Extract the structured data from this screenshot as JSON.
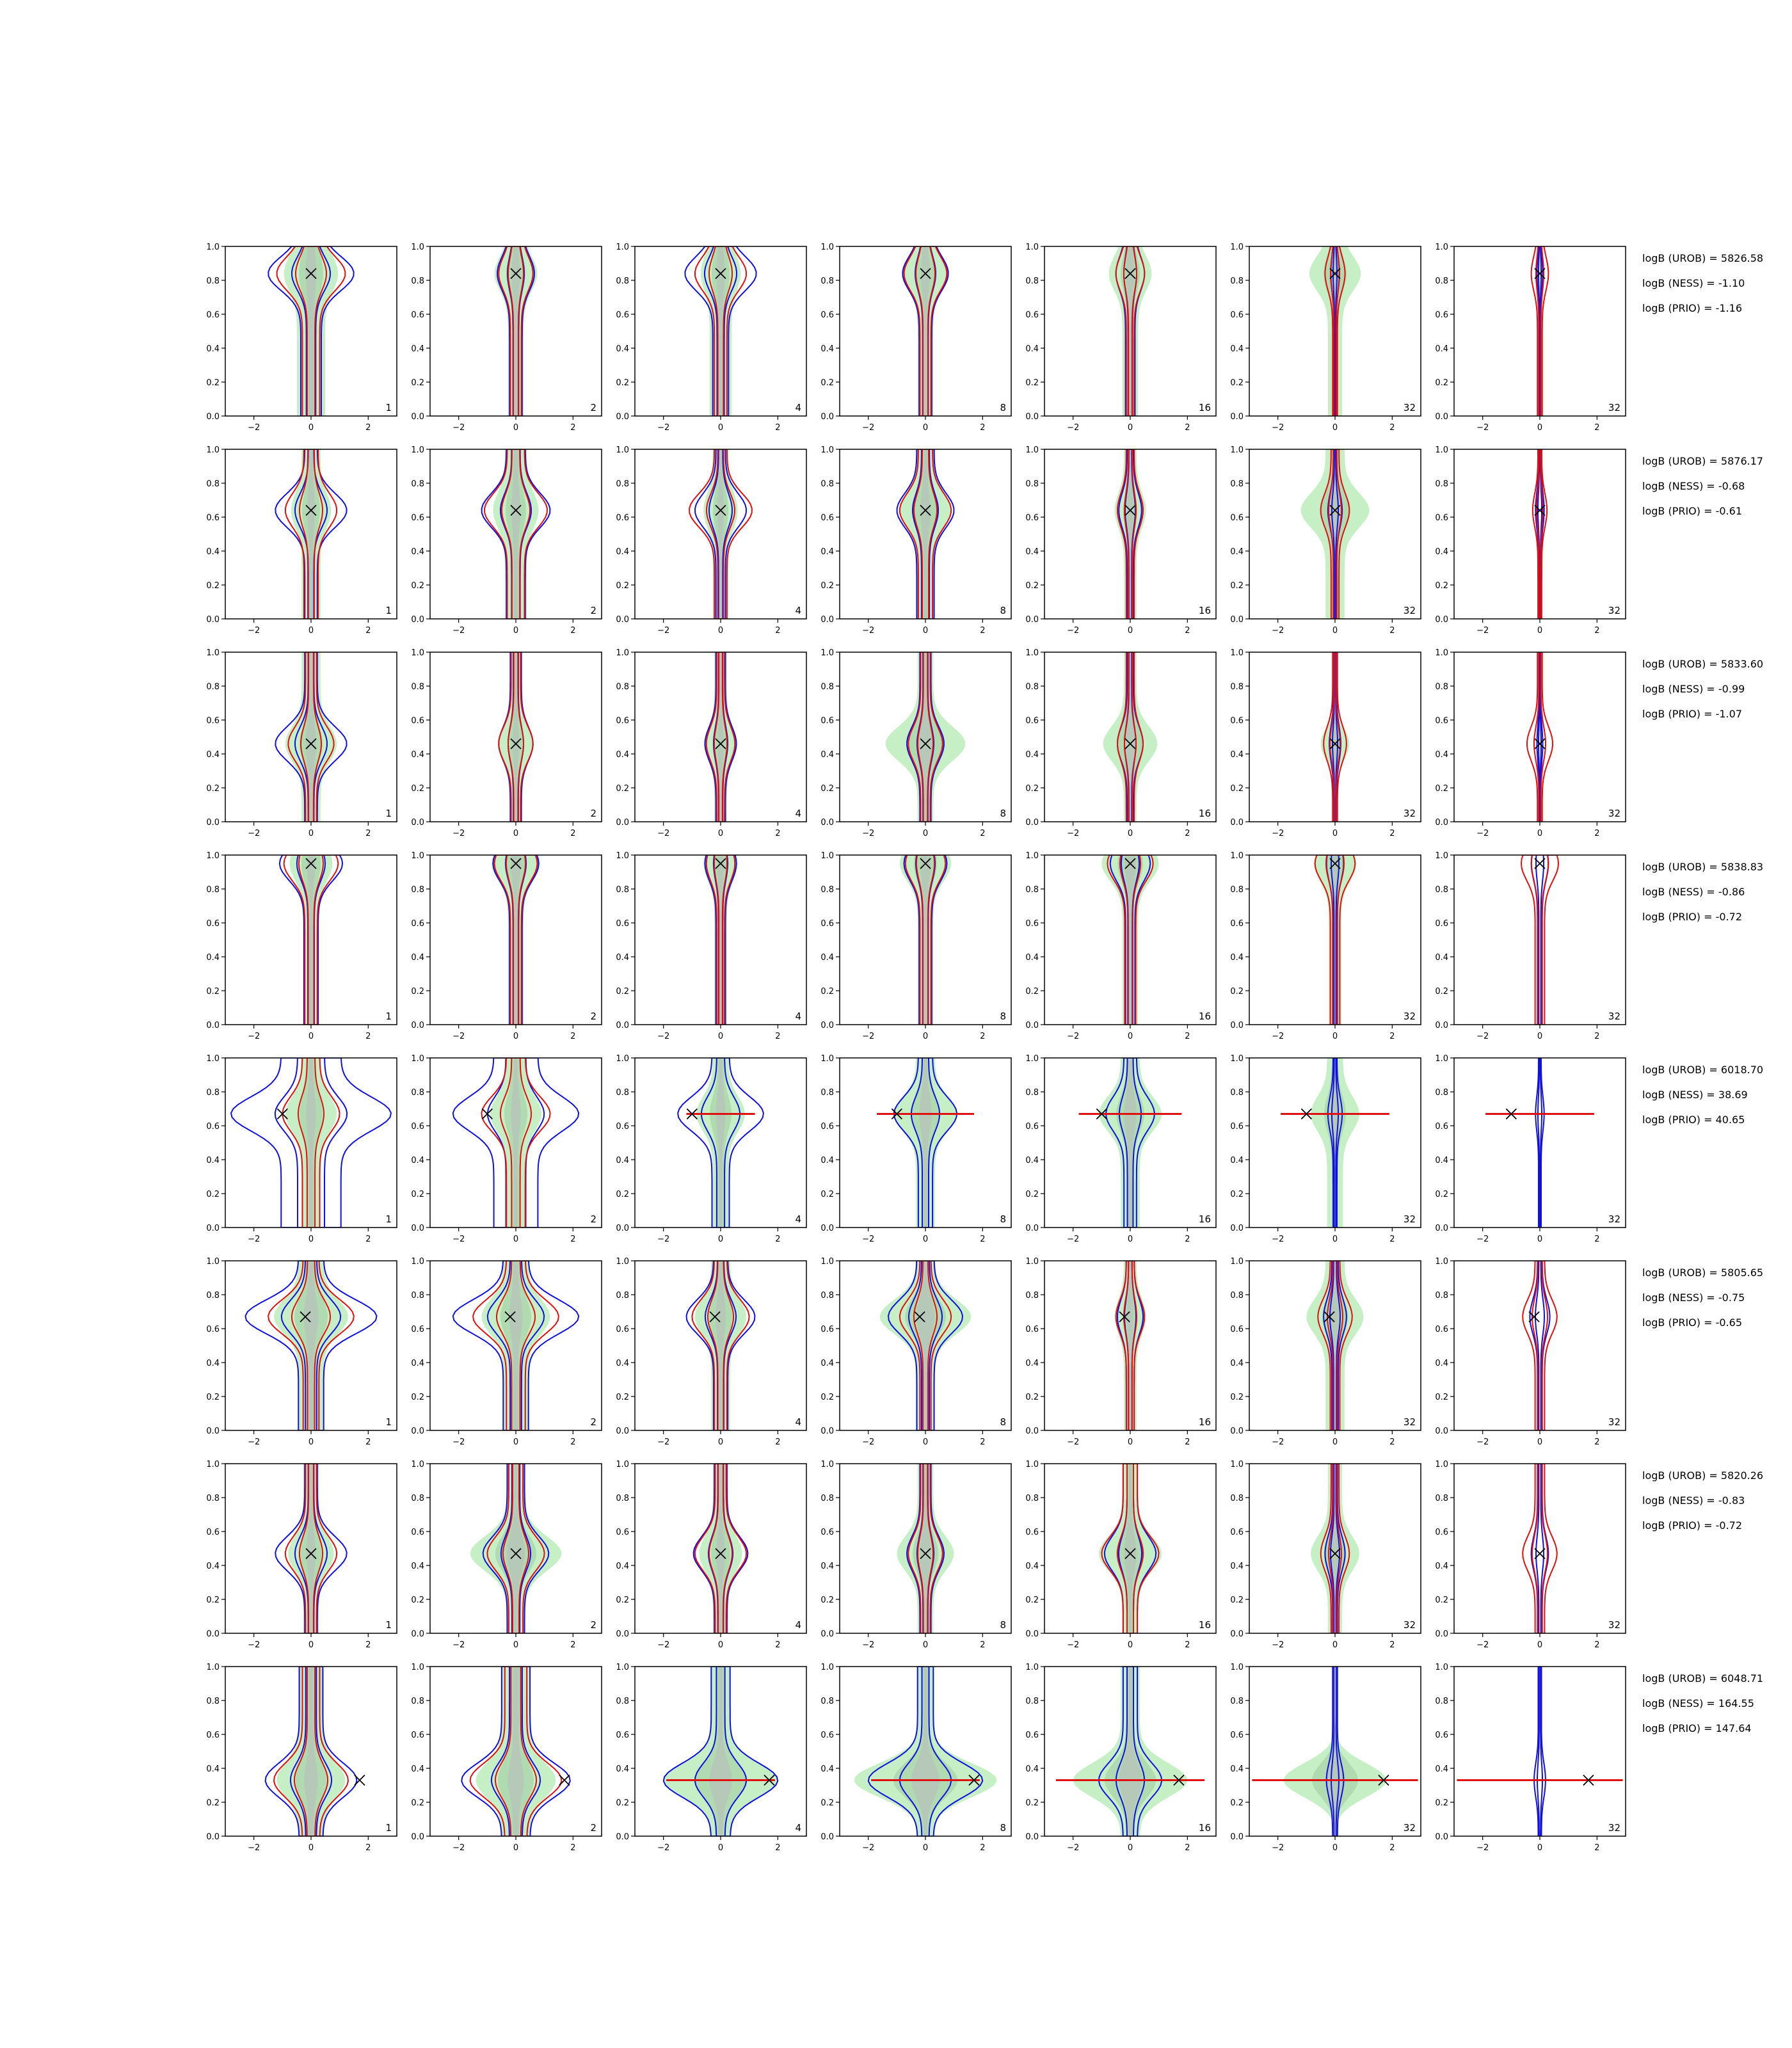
{
  "chart_data": {
    "type": "contour-grid",
    "rows": 8,
    "cols": 7,
    "xlim": [
      -3,
      3
    ],
    "ylim": [
      0,
      1
    ],
    "x_ticks": [
      -2,
      0,
      2
    ],
    "y_ticks": [
      0.0,
      0.2,
      0.4,
      0.6,
      0.8,
      1.0
    ],
    "x_tick_labels": [
      "−2",
      "0",
      "2"
    ],
    "y_tick_labels": [
      "0.0",
      "0.2",
      "0.4",
      "0.6",
      "0.8",
      "1.0"
    ],
    "column_labels": [
      "1",
      "2",
      "4",
      "8",
      "16",
      "32",
      "32"
    ],
    "colors": {
      "fill_light": "#c6efc6",
      "fill_mid": "#aad6aa",
      "fill_grey": "#b9c2be",
      "red": "#e01010",
      "blue": "#1010e0",
      "marker": "#000000"
    },
    "marker_symbol": "×",
    "rows_data": [
      {
        "truth": [
          0.0,
          0.84
        ],
        "annotations": [
          "logB (UROB) = 5826.58",
          "logB (NESS) = -1.10",
          "logB (PRIO) = -1.16"
        ],
        "panels": [
          {
            "fill": [
              0.95,
              0.9,
              0.5
            ],
            "red": [
              1.2,
              0.55
            ],
            "blue": [
              1.5,
              0.65
            ]
          },
          {
            "fill": [
              0.75,
              0.5,
              0.5
            ],
            "red": [
              0.6,
              0.35
            ],
            "blue": [
              0.65,
              0.4
            ]
          },
          {
            "fill": [
              0.7,
              0.7,
              0.5
            ],
            "red": [
              0.9,
              0.4
            ],
            "blue": [
              1.25,
              0.5
            ]
          },
          {
            "fill": [
              0.8,
              0.5,
              0.5
            ],
            "red": [
              0.75,
              0.35
            ],
            "blue": [
              0.8,
              0.4
            ]
          },
          {
            "fill": [
              0.75,
              0.5,
              0.5
            ],
            "red": [
              0.5,
              0.25
            ],
            "blue": [
              0.5,
              0.3
            ]
          },
          {
            "fill": [
              0.9,
              0.45,
              0.5
            ],
            "red": [
              0.35,
              0.15
            ],
            "blue": [
              0.15,
              0.08
            ]
          },
          {
            "fill": [
              0.0,
              0.0,
              0.5
            ],
            "red": [
              0.3,
              0.15
            ],
            "blue": [
              0.1,
              0.05
            ]
          }
        ]
      },
      {
        "truth": [
          0.0,
          0.64
        ],
        "annotations": [
          "logB (UROB) = 5876.17",
          "logB (NESS) = -0.68",
          "logB (PRIO) = -0.61"
        ],
        "panels": [
          {
            "fill": [
              0.7,
              0.6,
              0.5
            ],
            "red": [
              0.9,
              0.45
            ],
            "blue": [
              1.25,
              0.4
            ]
          },
          {
            "fill": [
              0.8,
              0.7,
              0.5
            ],
            "red": [
              1.1,
              0.55
            ],
            "blue": [
              1.2,
              0.6
            ]
          },
          {
            "fill": [
              0.6,
              0.5,
              0.5
            ],
            "red": [
              1.1,
              0.4
            ],
            "blue": [
              0.9,
              0.3
            ]
          },
          {
            "fill": [
              0.9,
              0.6,
              0.5
            ],
            "red": [
              0.9,
              0.45
            ],
            "blue": [
              1.0,
              0.55
            ]
          },
          {
            "fill": [
              0.55,
              0.4,
              0.5
            ],
            "red": [
              0.45,
              0.25
            ],
            "blue": [
              0.4,
              0.2
            ]
          },
          {
            "fill": [
              1.2,
              0.6,
              0.5
            ],
            "red": [
              0.5,
              0.25
            ],
            "blue": [
              0.25,
              0.1
            ]
          },
          {
            "fill": [
              0.0,
              0.0,
              0.5
            ],
            "red": [
              0.25,
              0.12
            ],
            "blue": [
              0.15,
              0.08
            ]
          }
        ]
      },
      {
        "truth": [
          0.0,
          0.46
        ],
        "annotations": [
          "logB (UROB) = 5833.60",
          "logB (NESS) = -0.99",
          "logB (PRIO) = -1.07"
        ],
        "panels": [
          {
            "fill": [
              0.9,
              0.6,
              0.5
            ],
            "red": [
              0.8,
              0.35
            ],
            "blue": [
              1.25,
              0.4
            ]
          },
          {
            "fill": [
              0.6,
              0.4,
              0.5
            ],
            "red": [
              0.6,
              0.3
            ],
            "blue": [
              0.6,
              0.35
            ]
          },
          {
            "fill": [
              0.55,
              0.4,
              0.5
            ],
            "red": [
              0.5,
              0.25
            ],
            "blue": [
              0.55,
              0.3
            ]
          },
          {
            "fill": [
              1.4,
              0.5,
              0.5
            ],
            "red": [
              0.6,
              0.3
            ],
            "blue": [
              0.65,
              0.35
            ]
          },
          {
            "fill": [
              0.95,
              0.4,
              0.5
            ],
            "red": [
              0.45,
              0.25
            ],
            "blue": [
              0.45,
              0.2
            ]
          },
          {
            "fill": [
              0.5,
              0.0,
              0.5
            ],
            "red": [
              0.4,
              0.15
            ],
            "blue": [
              0.2,
              0.1
            ]
          },
          {
            "fill": [
              0.0,
              0.0,
              0.5
            ],
            "red": [
              0.45,
              0.15
            ],
            "blue": [
              0.1,
              0.05
            ]
          }
        ]
      },
      {
        "truth": [
          0.0,
          0.95
        ],
        "annotations": [
          "logB (UROB) = 5838.83",
          "logB (NESS) = -0.86",
          "logB (PRIO) = -0.72"
        ],
        "panels": [
          {
            "fill": [
              0.75,
              0.5,
              0.5
            ],
            "red": [
              0.95,
              0.4
            ],
            "blue": [
              1.1,
              0.45
            ]
          },
          {
            "fill": [
              0.85,
              0.5,
              0.5
            ],
            "red": [
              0.75,
              0.35
            ],
            "blue": [
              0.8,
              0.4
            ]
          },
          {
            "fill": [
              0.6,
              0.4,
              0.5
            ],
            "red": [
              0.5,
              0.25
            ],
            "blue": [
              0.55,
              0.3
            ]
          },
          {
            "fill": [
              0.9,
              0.5,
              0.5
            ],
            "red": [
              0.7,
              0.35
            ],
            "blue": [
              0.75,
              0.4
            ]
          },
          {
            "fill": [
              1.0,
              0.5,
              0.5
            ],
            "red": [
              0.8,
              0.35
            ],
            "blue": [
              0.7,
              0.3
            ]
          },
          {
            "fill": [
              0.75,
              0.4,
              0.5
            ],
            "red": [
              0.7,
              0.3
            ],
            "blue": [
              0.3,
              0.15
            ]
          },
          {
            "fill": [
              0.0,
              0.0,
              0.5
            ],
            "red": [
              0.65,
              0.3
            ],
            "blue": [
              0.3,
              0.15
            ]
          }
        ]
      },
      {
        "truth": [
          -1.0,
          0.67
        ],
        "annotations": [
          "logB (UROB) = 6018.70",
          "logB (NESS) = 38.69",
          "logB (PRIO) = 40.65"
        ],
        "panels": [
          {
            "fill": [
              0.9,
              0.6,
              0.5
            ],
            "red": [
              1.0,
              0.55
            ],
            "blue": [
              2.8,
              1.9
            ]
          },
          {
            "fill": [
              0.9,
              0.6,
              0.5
            ],
            "red": [
              1.2,
              0.6
            ],
            "blue": [
              2.2,
              1.4
            ]
          },
          {
            "fill": [
              0.85,
              0.5,
              0.5
            ],
            "red": [
              1.2,
              0.0
            ],
            "blue": [
              1.5,
              0.55
            ]
          },
          {
            "fill": [
              1.1,
              0.6,
              0.5
            ],
            "red": [
              1.7,
              0.0
            ],
            "blue": [
              1.1,
              0.45
            ]
          },
          {
            "fill": [
              1.1,
              0.6,
              0.5
            ],
            "red": [
              1.8,
              0.0
            ],
            "blue": [
              0.85,
              0.4
            ]
          },
          {
            "fill": [
              0.85,
              0.5,
              0.5
            ],
            "red": [
              1.9,
              0.0
            ],
            "blue": [
              0.25,
              0.12
            ]
          },
          {
            "fill": [
              0.0,
              0.0,
              0.5
            ],
            "red": [
              1.9,
              0.0
            ],
            "blue": [
              0.15,
              0.08
            ]
          }
        ]
      },
      {
        "truth": [
          -0.2,
          0.67
        ],
        "annotations": [
          "logB (UROB) = 5805.65",
          "logB (NESS) = -0.75",
          "logB (PRIO) = -0.65"
        ],
        "panels": [
          {
            "fill": [
              1.3,
              0.8,
              0.5
            ],
            "red": [
              1.5,
              0.5
            ],
            "blue": [
              2.3,
              0.8
            ]
          },
          {
            "fill": [
              1.2,
              0.8,
              0.5
            ],
            "red": [
              1.5,
              0.6
            ],
            "blue": [
              2.2,
              0.8
            ]
          },
          {
            "fill": [
              0.9,
              0.6,
              0.5
            ],
            "red": [
              1.0,
              0.4
            ],
            "blue": [
              1.2,
              0.45
            ]
          },
          {
            "fill": [
              1.6,
              0.6,
              0.5
            ],
            "red": [
              0.9,
              0.35
            ],
            "blue": [
              1.3,
              0.55
            ]
          },
          {
            "fill": [
              0.55,
              0.4,
              0.5
            ],
            "red": [
              0.5,
              0.25
            ],
            "blue": [
              0.45,
              0.25
            ]
          },
          {
            "fill": [
              1.0,
              0.6,
              0.5
            ],
            "red": [
              0.6,
              0.3
            ],
            "blue": [
              0.4,
              0.2
            ]
          },
          {
            "fill": [
              0.0,
              0.0,
              0.5
            ],
            "red": [
              0.6,
              0.3
            ],
            "blue": [
              0.35,
              0.15
            ]
          }
        ]
      },
      {
        "truth": [
          0.0,
          0.47
        ],
        "annotations": [
          "logB (UROB) = 5820.26",
          "logB (NESS) = -0.83",
          "logB (PRIO) = -0.72"
        ],
        "panels": [
          {
            "fill": [
              0.8,
              0.5,
              0.5
            ],
            "red": [
              0.9,
              0.35
            ],
            "blue": [
              1.25,
              0.4
            ]
          },
          {
            "fill": [
              1.6,
              0.6,
              0.5
            ],
            "red": [
              1.0,
              0.45
            ],
            "blue": [
              1.15,
              0.55
            ]
          },
          {
            "fill": [
              0.75,
              0.5,
              0.5
            ],
            "red": [
              0.9,
              0.35
            ],
            "blue": [
              0.95,
              0.4
            ]
          },
          {
            "fill": [
              1.0,
              0.5,
              0.5
            ],
            "red": [
              0.6,
              0.3
            ],
            "blue": [
              0.65,
              0.35
            ]
          },
          {
            "fill": [
              1.1,
              0.5,
              0.5
            ],
            "red": [
              1.0,
              0.45
            ],
            "blue": [
              0.9,
              0.45
            ]
          },
          {
            "fill": [
              0.85,
              0.45,
              0.5
            ],
            "red": [
              0.5,
              0.25
            ],
            "blue": [
              0.35,
              0.15
            ]
          },
          {
            "fill": [
              0.0,
              0.0,
              0.5
            ],
            "red": [
              0.6,
              0.3
            ],
            "blue": [
              0.3,
              0.15
            ]
          }
        ]
      },
      {
        "truth": [
          1.7,
          0.33
        ],
        "annotations": [
          "logB (UROB) = 6048.71",
          "logB (NESS) = 164.55",
          "logB (PRIO) = 147.64"
        ],
        "panels": [
          {
            "fill": [
              1.2,
              0.8,
              0.5
            ],
            "red": [
              1.3,
              0.55
            ],
            "blue": [
              1.6,
              0.75
            ]
          },
          {
            "fill": [
              1.4,
              0.9,
              0.5
            ],
            "red": [
              1.6,
              0.7
            ],
            "blue": [
              1.9,
              0.9
            ]
          },
          {
            "fill": [
              2.0,
              0.6,
              0.5
            ],
            "red": [
              1.9,
              0.0
            ],
            "blue": [
              2.0,
              0.6
            ]
          },
          {
            "fill": [
              2.5,
              0.5,
              0.5
            ],
            "red": [
              1.9,
              0.0
            ],
            "blue": [
              2.0,
              0.5
            ]
          },
          {
            "fill": [
              2.0,
              0.6,
              0.5
            ],
            "red": [
              2.6,
              0.0
            ],
            "blue": [
              1.1,
              0.45
            ]
          },
          {
            "fill": [
              1.8,
              0.0,
              0.5
            ],
            "red": [
              2.9,
              0.0
            ],
            "blue": [
              0.3,
              0.15
            ]
          },
          {
            "fill": [
              0.0,
              0.0,
              0.5
            ],
            "red": [
              2.9,
              0.0
            ],
            "blue": [
              0.2,
              0.1
            ]
          }
        ]
      }
    ]
  }
}
